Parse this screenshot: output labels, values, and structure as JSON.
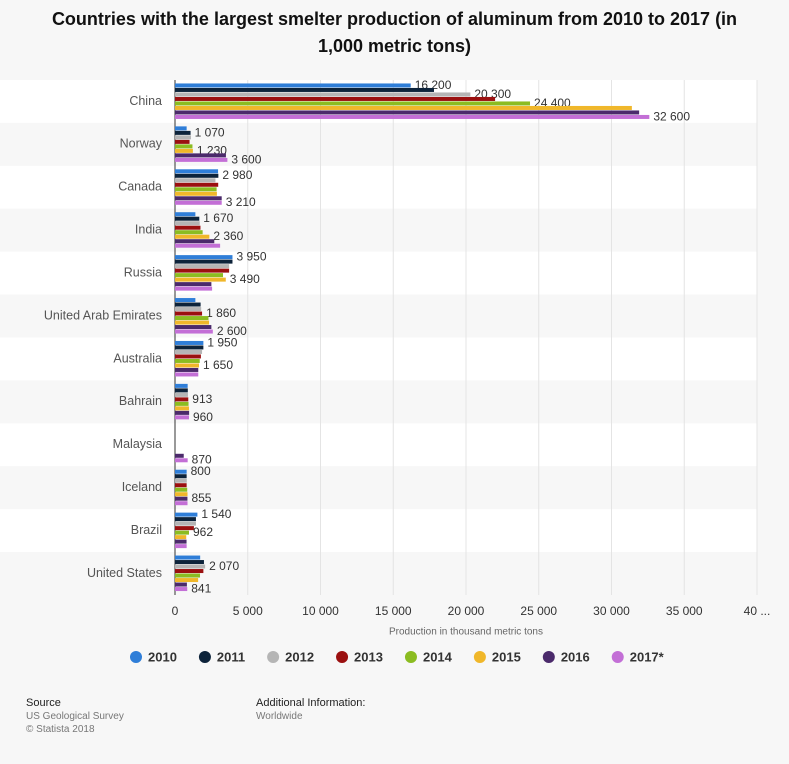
{
  "chart_data": {
    "type": "hbar",
    "title": "Countries with the largest smelter production of aluminum from 2010 to 2017 (in 1,000 metric tons)",
    "x_label": "Production in thousand metric tons",
    "categories": [
      "China",
      "Norway",
      "Canada",
      "India",
      "Russia",
      "United Arab Emirates",
      "Australia",
      "Bahrain",
      "Malaysia",
      "Iceland",
      "Brazil",
      "United States"
    ],
    "series": [
      {
        "name": "2010",
        "color": "#2f7ed8",
        "values": [
          16200,
          800,
          2960,
          1400,
          3950,
          1400,
          1950,
          870,
          null,
          800,
          1540,
          1730
        ],
        "value_labels": [
          "16 200",
          null,
          null,
          null,
          "3 950",
          null,
          "1 950",
          null,
          null,
          "800",
          "1 540",
          null
        ]
      },
      {
        "name": "2011",
        "color": "#0d233a",
        "values": [
          17800,
          1070,
          2980,
          1670,
          3950,
          1760,
          1950,
          880,
          null,
          800,
          1440,
          1990
        ],
        "value_labels": [
          null,
          "1 070",
          "2 980",
          "1 670",
          null,
          null,
          null,
          null,
          null,
          null,
          null,
          null
        ]
      },
      {
        "name": "2012",
        "color": "#b5b5b5",
        "values": [
          20300,
          1100,
          2780,
          1700,
          3720,
          1800,
          1860,
          890,
          null,
          810,
          1440,
          2070
        ],
        "value_labels": [
          "20 300",
          null,
          null,
          null,
          null,
          null,
          null,
          null,
          null,
          null,
          null,
          "2 070"
        ]
      },
      {
        "name": "2013",
        "color": "#9b1010",
        "values": [
          22000,
          1000,
          2970,
          1750,
          3720,
          1860,
          1780,
          913,
          null,
          800,
          1300,
          1950
        ],
        "value_labels": [
          null,
          null,
          null,
          null,
          null,
          "1 860",
          null,
          "913",
          null,
          null,
          null,
          null
        ]
      },
      {
        "name": "2014",
        "color": "#8bbc21",
        "values": [
          24400,
          1200,
          2860,
          1900,
          3300,
          2300,
          1700,
          931,
          null,
          840,
          962,
          1720
        ],
        "value_labels": [
          "24 400",
          null,
          null,
          null,
          null,
          null,
          null,
          null,
          null,
          null,
          "962",
          null
        ]
      },
      {
        "name": "2015",
        "color": "#f0b72a",
        "values": [
          31400,
          1230,
          2880,
          2360,
          3490,
          2340,
          1650,
          960,
          null,
          860,
          772,
          1590
        ],
        "value_labels": [
          null,
          "1 230",
          null,
          "2 360",
          "3 490",
          null,
          "1 650",
          null,
          null,
          null,
          null,
          null
        ]
      },
      {
        "name": "2016",
        "color": "#4b2a6b",
        "values": [
          31900,
          3500,
          3210,
          2700,
          2500,
          2500,
          1600,
          970,
          600,
          855,
          793,
          818
        ],
        "value_labels": [
          null,
          null,
          null,
          null,
          null,
          null,
          null,
          null,
          null,
          "855",
          null,
          null
        ]
      },
      {
        "name": "2017*",
        "color": "#c36fd6",
        "values": [
          32600,
          3600,
          3210,
          3100,
          2550,
          2600,
          1600,
          960,
          870,
          860,
          800,
          841
        ],
        "value_labels": [
          "32 600",
          "3 600",
          "3 210",
          null,
          null,
          "2 600",
          null,
          "960",
          "870",
          null,
          null,
          "841"
        ]
      }
    ],
    "xlim": [
      0,
      40000
    ],
    "xticks": [
      0,
      {
        "value": 5000,
        "label": "5 000"
      },
      {
        "value": 10000,
        "label": "10 000"
      },
      {
        "value": 15000,
        "label": "15 000"
      },
      {
        "value": 20000,
        "label": "20 000"
      },
      {
        "value": 25000,
        "label": "25 000"
      },
      {
        "value": 30000,
        "label": "30 000"
      },
      {
        "value": 35000,
        "label": "35 000"
      },
      {
        "value": 40000,
        "label": "40 ..."
      }
    ],
    "grid": true
  },
  "footer": {
    "source_title": "Source",
    "source": "US Geological Survey",
    "copyright": "© Statista 2018",
    "info_title": "Additional Information:",
    "info": "Worldwide"
  }
}
